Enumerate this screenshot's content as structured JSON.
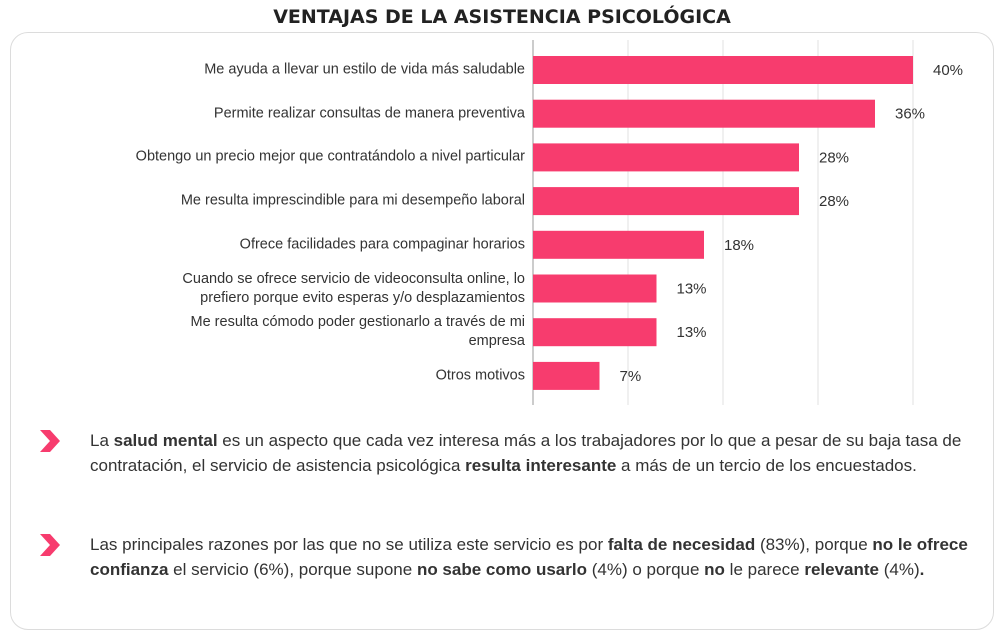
{
  "chart_data": {
    "type": "bar",
    "orientation": "horizontal",
    "title": "VENTAJAS DE LA ASISTENCIA PSICOLÓGICA",
    "categories": [
      "Me ayuda a llevar un estilo de vida más saludable",
      "Permite realizar consultas de manera preventiva",
      "Obtengo un precio mejor que contratándolo a nivel particular",
      "Me resulta imprescindible para mi desempeño laboral",
      "Ofrece facilidades para compaginar horarios",
      "Cuando se ofrece servicio de videoconsulta online, lo\nprefiero porque evito esperas y/o desplazamientos",
      "Me resulta cómodo poder gestionarlo a través de mi\nempresa",
      "Otros motivos"
    ],
    "values": [
      40,
      36,
      28,
      28,
      18,
      13,
      13,
      7
    ],
    "value_labels": [
      "40%",
      "36%",
      "28%",
      "28%",
      "18%",
      "13%",
      "13%",
      "7%"
    ],
    "color": "#f73c6e",
    "xlim": [
      0,
      40
    ],
    "xticks": [
      0,
      10,
      20,
      30,
      40
    ],
    "grid": true
  },
  "notes": [
    [
      {
        "text": "La ",
        "bold": false
      },
      {
        "text": "salud mental",
        "bold": true
      },
      {
        "text": " es un aspecto que cada vez interesa más a los trabajadores por lo que a pesar de su baja tasa de contratación, el servicio de asistencia psicológica ",
        "bold": false
      },
      {
        "text": "resulta interesante",
        "bold": true
      },
      {
        "text": " a más de un tercio de los encuestados.",
        "bold": false
      }
    ],
    [
      {
        "text": "Las principales razones por las que no se utiliza este servicio es por ",
        "bold": false
      },
      {
        "text": "falta de necesidad",
        "bold": true
      },
      {
        "text": " (83%), porque ",
        "bold": false
      },
      {
        "text": "no le ofrece confianza",
        "bold": true
      },
      {
        "text": " el servicio (6%), porque supone ",
        "bold": false
      },
      {
        "text": "no sabe como usarlo",
        "bold": true
      },
      {
        "text": " (4%) o porque ",
        "bold": false
      },
      {
        "text": "no",
        "bold": true
      },
      {
        "text": " le parece ",
        "bold": false
      },
      {
        "text": "relevante",
        "bold": true
      },
      {
        "text": " (4%)",
        "bold": false
      },
      {
        "text": ".",
        "bold": true
      }
    ]
  ]
}
